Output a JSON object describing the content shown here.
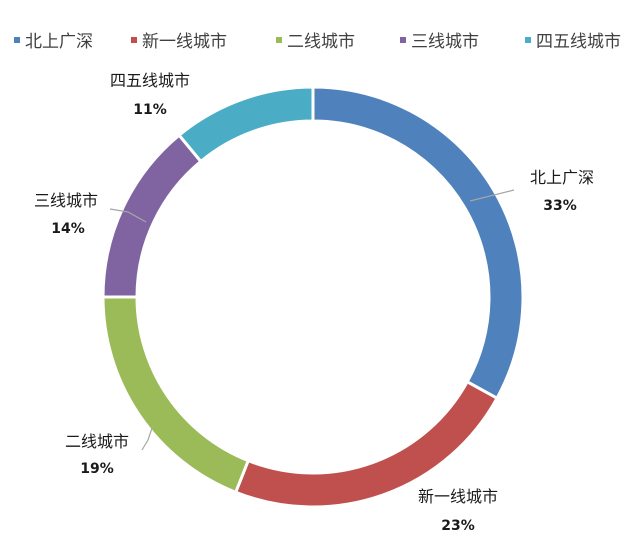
{
  "chart_data": {
    "type": "pie",
    "variant": "doughnut",
    "title": "",
    "legend_position": "top",
    "categories": [
      "北上广深",
      "新一线城市",
      "二线城市",
      "三线城市",
      "四五线城市"
    ],
    "values": [
      33,
      23,
      19,
      14,
      11
    ],
    "value_labels": [
      "33%",
      "23%",
      "19%",
      "14%",
      "11%"
    ],
    "colors": [
      "#4f81bd",
      "#c0504d",
      "#9bbb59",
      "#8064a2",
      "#4bacc6"
    ],
    "start_angle": "12 o'clock",
    "direction": "clockwise"
  }
}
